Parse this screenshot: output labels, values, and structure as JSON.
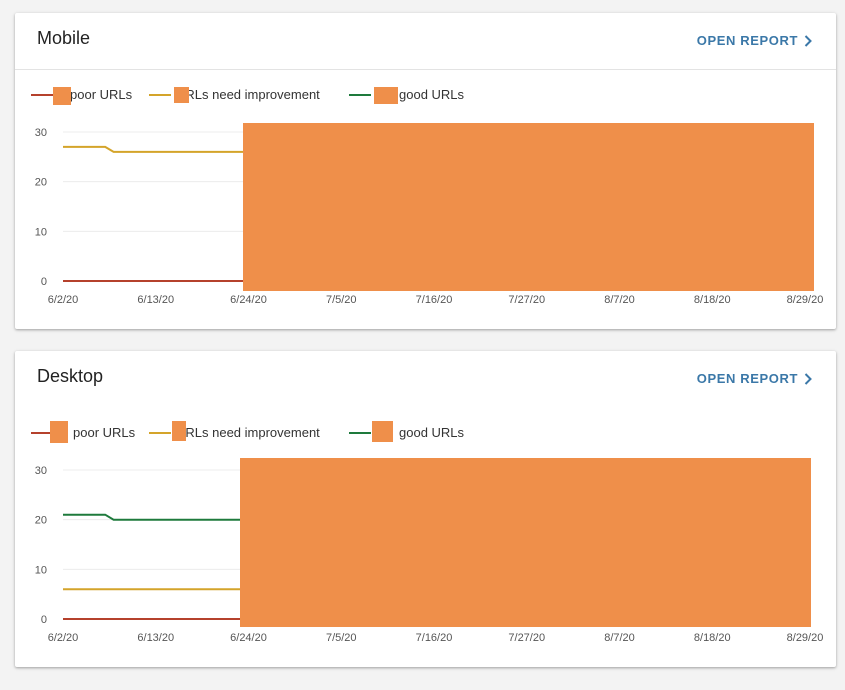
{
  "cards": [
    {
      "id": "mobile",
      "title": "Mobile",
      "open_report": "OPEN REPORT",
      "legend": [
        {
          "label": "poor URLs",
          "color": "#b5412c"
        },
        {
          "label": "URLs need improvement",
          "color": "#d4a42a"
        },
        {
          "label": "good URLs",
          "color": "#1e7a3c"
        }
      ],
      "chart_data": {
        "type": "line",
        "x_ticks": [
          "6/2/20",
          "6/13/20",
          "6/24/20",
          "7/5/20",
          "7/16/20",
          "7/27/20",
          "8/7/20",
          "8/18/20",
          "8/29/20"
        ],
        "y_ticks": [
          "0",
          "10",
          "20",
          "30"
        ],
        "ylim": [
          0,
          30
        ],
        "series": [
          {
            "name": "poor URLs",
            "color": "#b5412c",
            "points": [
              [
                "6/2/20",
                0
              ],
              [
                "6/24/20",
                0
              ]
            ]
          },
          {
            "name": "URLs need improvement",
            "color": "#d4a42a",
            "points": [
              [
                "6/2/20",
                27
              ],
              [
                "6/7/20",
                27
              ],
              [
                "6/8/20",
                26
              ],
              [
                "6/24/20",
                26
              ]
            ]
          }
        ]
      }
    },
    {
      "id": "desktop",
      "title": "Desktop",
      "open_report": "OPEN REPORT",
      "legend": [
        {
          "label": "poor URLs",
          "color": "#b5412c"
        },
        {
          "label": "URLs need improvement",
          "color": "#d4a42a"
        },
        {
          "label": "good URLs",
          "color": "#1e7a3c"
        }
      ],
      "chart_data": {
        "type": "line",
        "x_ticks": [
          "6/2/20",
          "6/13/20",
          "6/24/20",
          "7/5/20",
          "7/16/20",
          "7/27/20",
          "8/7/20",
          "8/18/20",
          "8/29/20"
        ],
        "y_ticks": [
          "0",
          "10",
          "20",
          "30"
        ],
        "ylim": [
          0,
          30
        ],
        "series": [
          {
            "name": "poor URLs",
            "color": "#b5412c",
            "points": [
              [
                "6/2/20",
                0
              ],
              [
                "6/24/20",
                0
              ]
            ]
          },
          {
            "name": "URLs need improvement",
            "color": "#d4a42a",
            "points": [
              [
                "6/2/20",
                6
              ],
              [
                "6/24/20",
                6
              ]
            ]
          },
          {
            "name": "good URLs",
            "color": "#1e7a3c",
            "points": [
              [
                "6/2/20",
                21
              ],
              [
                "6/7/20",
                21
              ],
              [
                "6/8/20",
                20
              ],
              [
                "6/24/20",
                20
              ]
            ]
          }
        ]
      }
    }
  ]
}
